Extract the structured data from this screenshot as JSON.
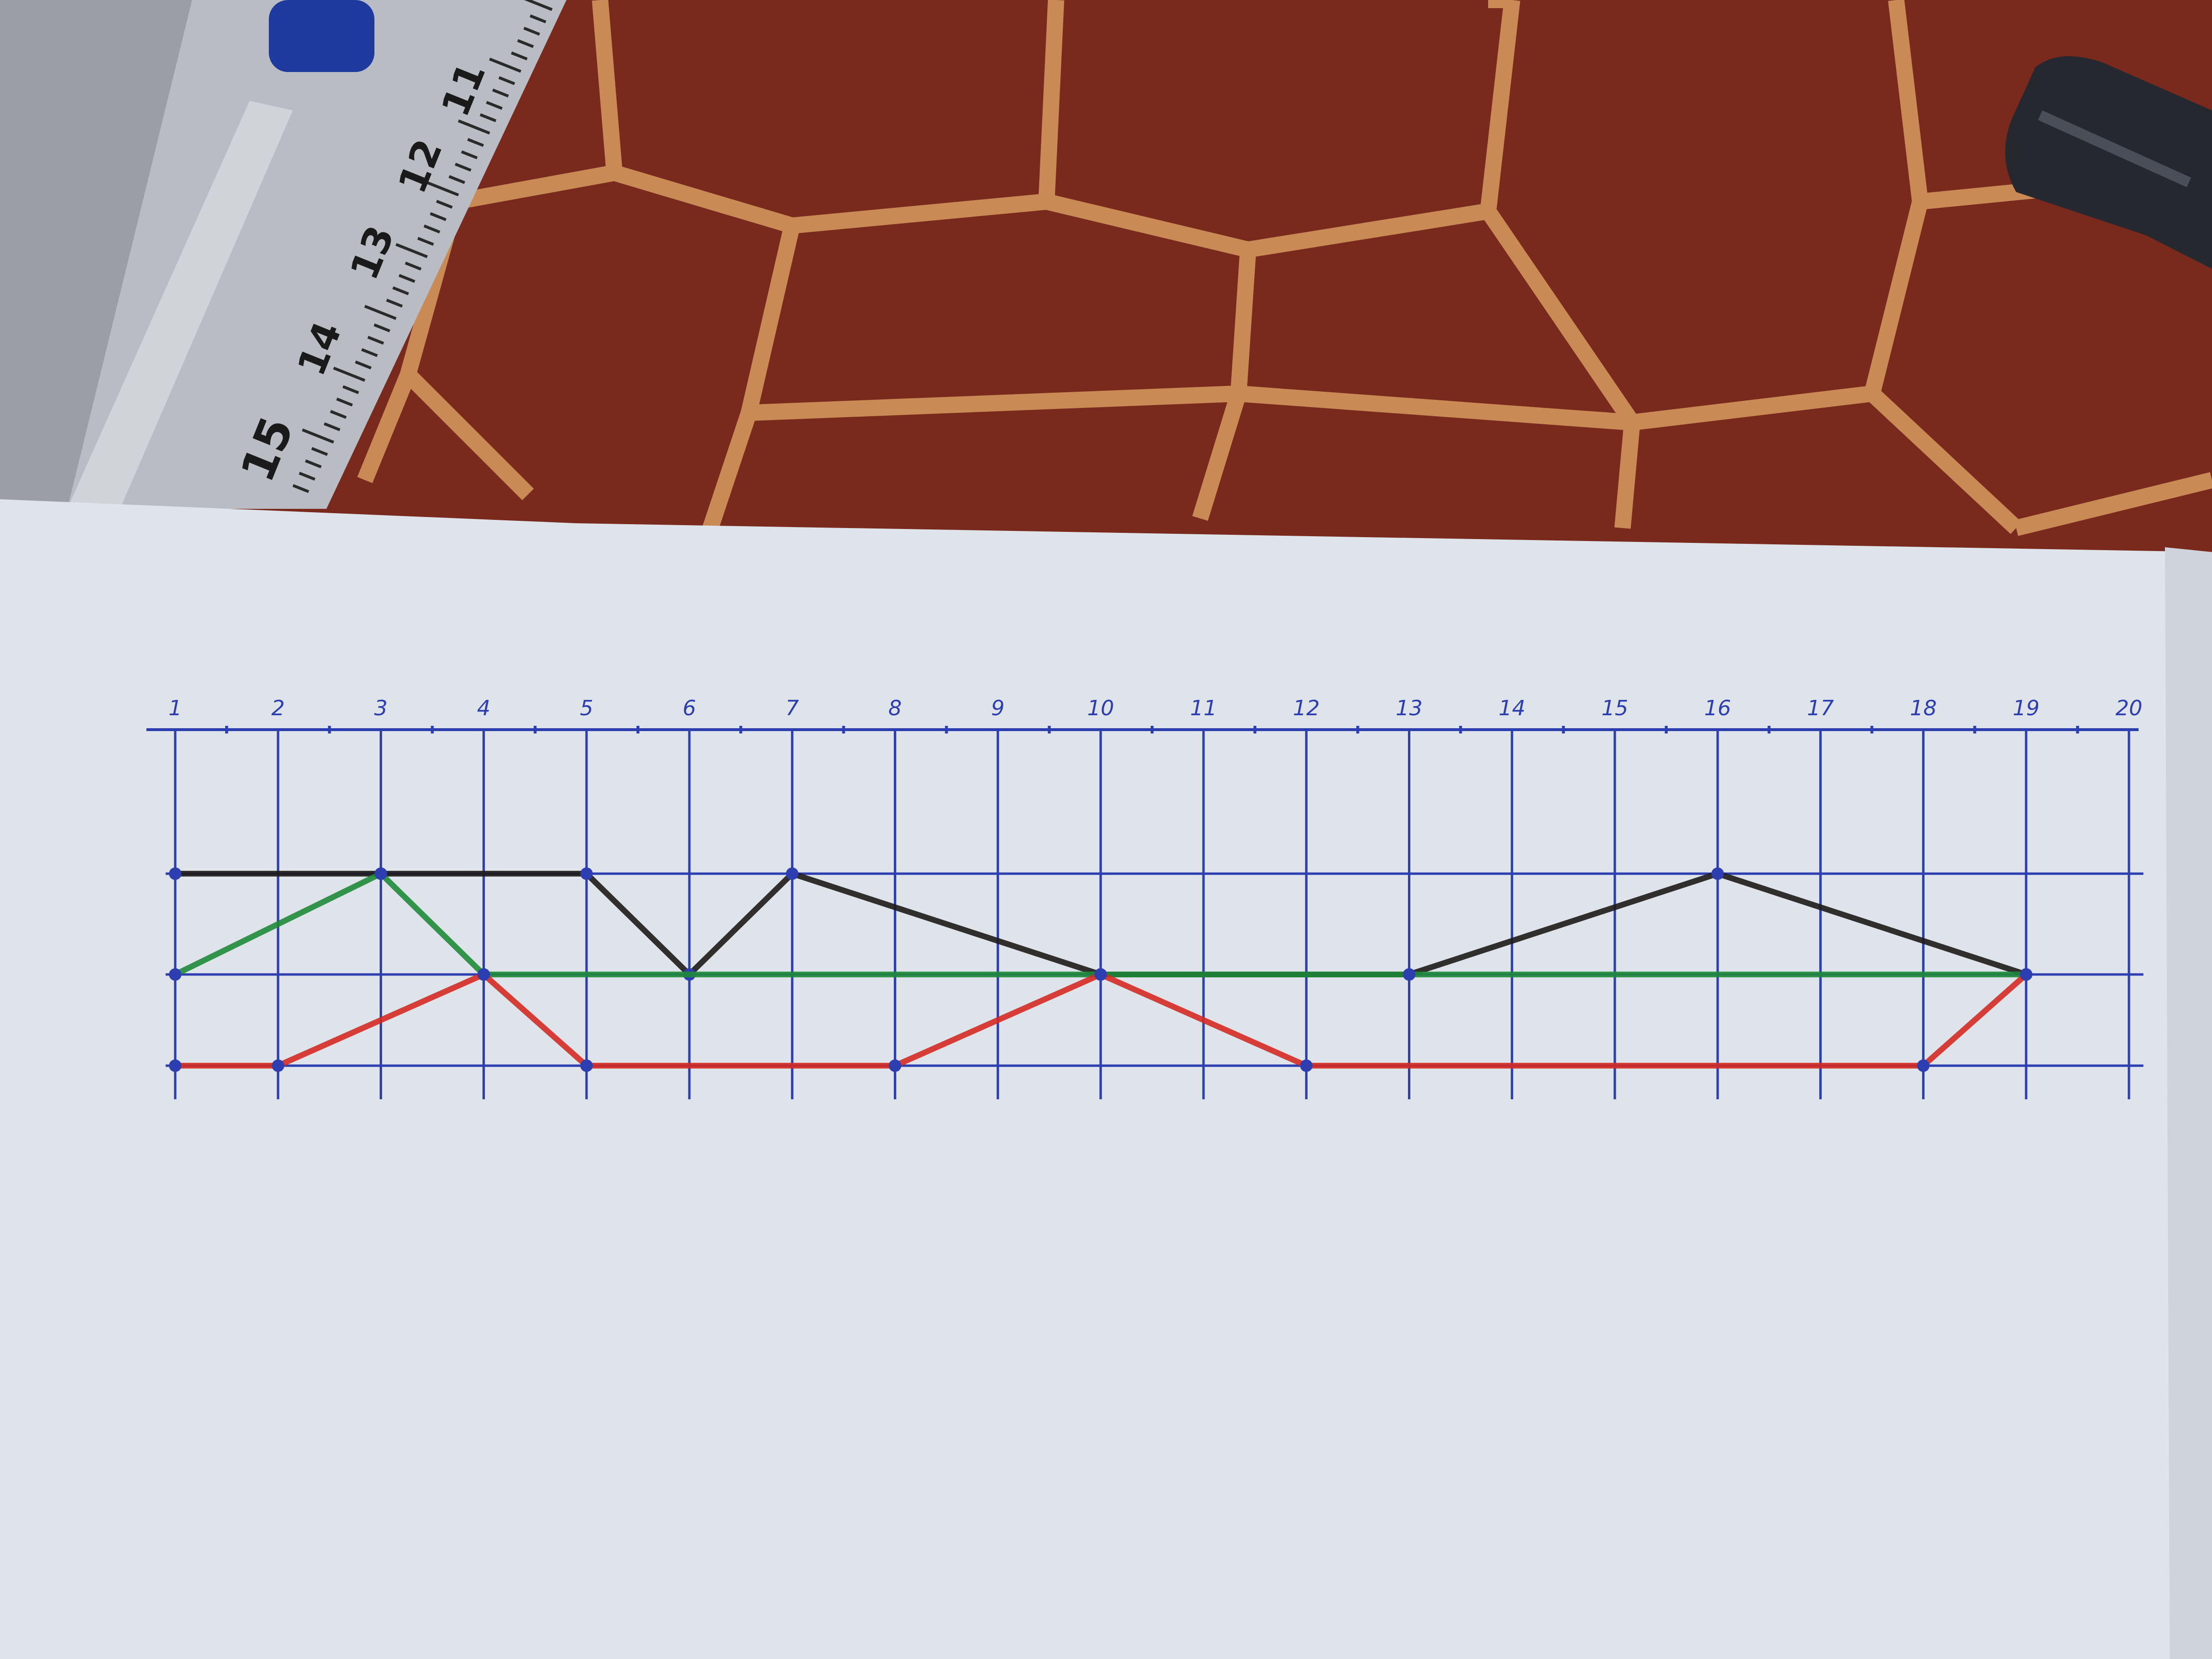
{
  "scene": {
    "table_color": "#7a2a1c",
    "hex_line_color": "#c98a55",
    "paper_color": "#dfe3ea",
    "grid_color": "#2d3fb0"
  },
  "ruler": {
    "numbers": [
      "15",
      "14",
      "13",
      "12",
      "11"
    ],
    "color": "#b9bcc2"
  },
  "chart_data": {
    "type": "line",
    "x_tick_labels": [
      "1",
      "2",
      "3",
      "4",
      "5",
      "6",
      "7",
      "8",
      "9",
      "10",
      "11",
      "12",
      "13",
      "14",
      "15",
      "16",
      "17",
      "18",
      "19",
      "20"
    ],
    "xlim": [
      1,
      20
    ],
    "ylim": [
      0,
      3
    ],
    "y_levels": [
      0,
      1,
      2
    ],
    "grid": true,
    "series": [
      {
        "color": "#1e1a1a",
        "points": [
          [
            1,
            2
          ],
          [
            3,
            2
          ],
          [
            5,
            2
          ],
          [
            6,
            1
          ],
          [
            7,
            2
          ],
          [
            10,
            1
          ],
          [
            13,
            1
          ],
          [
            16,
            2
          ],
          [
            19,
            1
          ]
        ]
      },
      {
        "color": "#1f8a3a",
        "points": [
          [
            1,
            1
          ],
          [
            3,
            2
          ],
          [
            4,
            1
          ],
          [
            10,
            1
          ],
          [
            13,
            1
          ],
          [
            19,
            1
          ]
        ]
      },
      {
        "color": "#d42a22",
        "points": [
          [
            1,
            0
          ],
          [
            2,
            0
          ],
          [
            4,
            1
          ],
          [
            5,
            0
          ],
          [
            8,
            0
          ],
          [
            10,
            1
          ],
          [
            12,
            0
          ],
          [
            18,
            0
          ],
          [
            19,
            1
          ]
        ]
      }
    ]
  }
}
